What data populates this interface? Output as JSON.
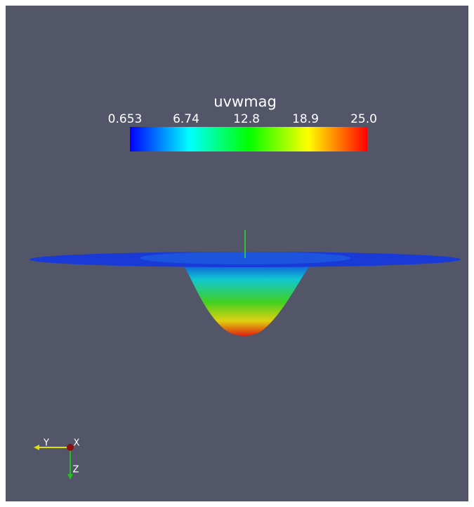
{
  "colorbar": {
    "title": "uvwmag",
    "ticks": [
      "0.653",
      "6.74",
      "12.8",
      "18.9",
      "25.0"
    ]
  },
  "axes": {
    "y": "Y",
    "x": "X",
    "z": "Z"
  }
}
